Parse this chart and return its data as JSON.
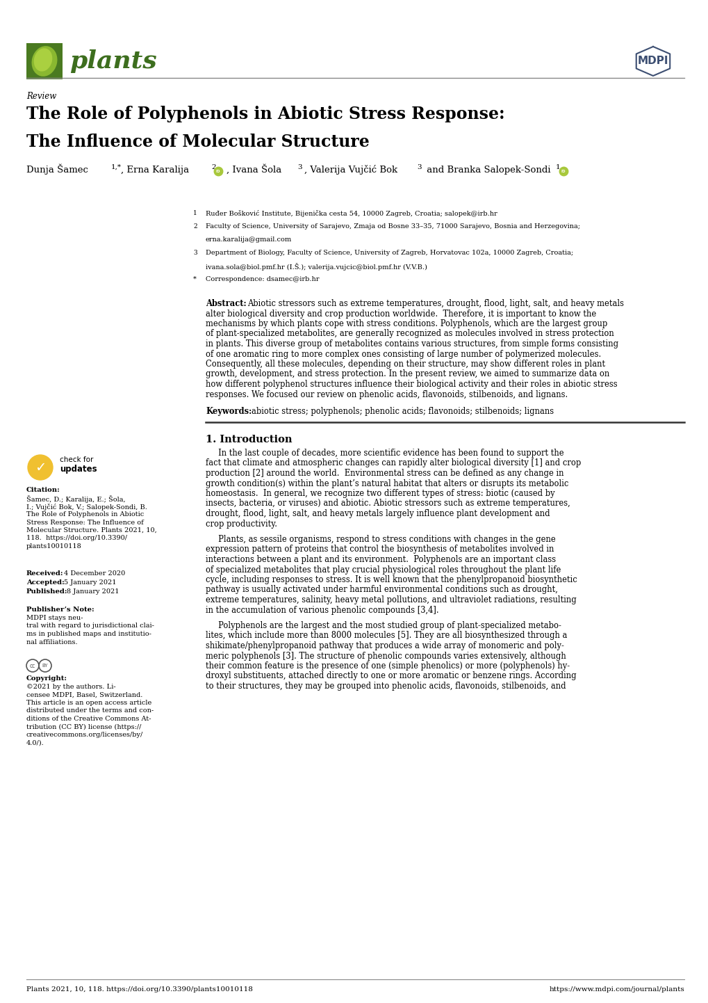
{
  "page_width": 10.2,
  "page_height": 14.42,
  "bg_color": "#ffffff",
  "journal_name": "plants",
  "journal_color": "#3d6e1e",
  "review_label": "Review",
  "title_line1": "The Role of Polyphenols in Abiotic Stress Response:",
  "title_line2": "The Inﬂuence of Molecular Structure",
  "affil1_num": "1",
  "affil1_text": "Ruđer Bošković Institute, Bijenička cesta 54, 10000 Zagreb, Croatia; salopek@irb.hr",
  "affil2_num": "2",
  "affil2_text": "Faculty of Science, University of Sarajevo, Zmaja od Bosne 33–35, 71000 Sarajevo, Bosnia and Herzegovina;",
  "affil2_text2": "erna.karalija@gmail.com",
  "affil3_num": "3",
  "affil3_text": "Department of Biology, Faculty of Science, University of Zagreb, Horvatovac 102a, 10000 Zagreb, Croatia;",
  "affil3_text2": "ivana.sola@biol.pmf.hr (I.Š.); valerija.vujcic@biol.pmf.hr (V.V.B.)",
  "affil_star_text": "Correspondence: dsamec@irb.hr",
  "abstract_body": "Abiotic stressors such as extreme temperatures, drought, flood, light, salt, and heavy metals alter biological diversity and crop production worldwide.  Therefore, it is important to know the mechanisms by which plants cope with stress conditions. Polyphenols, which are the largest group of plant-specialized metabolites, are generally recognized as molecules involved in stress protection in plants. This diverse group of metabolites contains various structures, from simple forms consisting of one aromatic ring to more complex ones consisting of large number of polymerized molecules. Consequently, all these molecules, depending on their structure, may show different roles in plant growth, development, and stress protection. In the present review, we aimed to summarize data on how different polyphenol structures influence their biological activity and their roles in abiotic stress responses. We focused our review on phenolic acids, flavonoids, stilbenoids, and lignans.",
  "keywords_text": "abiotic stress; polyphenols; phenolic acids; flavonoids; stilbenoids; lignans",
  "citation_body": "Šamec, D.; Karalija, E.; Šola,\nI.; Vujčić Bok, V.; Salopek-Sondi, B.\nThe Role of Polyphenols in Abiotic\nStress Response: The Influence of\nMolecular Structure. Plants 2021, 10,\n118.  https://doi.org/10.3390/\nplants10010118",
  "received_date": "4 December 2020",
  "accepted_date": "5 January 2021",
  "published_date": "8 January 2021",
  "publisher_note_body": "MDPI stays neu-\ntral with regard to jurisdictional clai-\nms in published maps and institutio-\nnal affiliations.",
  "copyright_body": "©2021 by the authors. Li-\ncensee MDPI, Basel, Switzerland.\nThis article is an open access article\ndistributed under the terms and con-\nditions of the Creative Commons At-\ntribution (CC BY) license (https://\ncreativecommons.org/licenses/by/\n4.0/).",
  "intro_heading": "1. Introduction",
  "intro_p1": "     In the last couple of decades, more scientific evidence has been found to support the fact that climate and atmospheric changes can rapidly alter biological diversity [1] and crop production [2] around the world.  Environmental stress can be defined as any change in growth condition(s) within the plant’s natural habitat that alters or disrupts its metabolic homeostasis.  In general, we recognize two different types of stress: biotic (caused by insects, bacteria, or viruses) and abiotic. Abiotic stressors such as extreme temperatures, drought, flood, light, salt, and heavy metals largely influence plant development and crop productivity.",
  "intro_p2": "     Plants, as sessile organisms, respond to stress conditions with changes in the gene expression pattern of proteins that control the biosynthesis of metabolites involved in interactions between a plant and its environment.  Polyphenols are an important class of specialized metabolites that play crucial physiological roles throughout the plant life cycle, including responses to stress. It is well known that the phenylpropanoid biosynthetic pathway is usually activated under harmful environmental conditions such as drought, extreme temperatures, salinity, heavy metal pollutions, and ultraviolet radiations, resulting in the accumulation of various phenolic compounds [3,4].",
  "intro_p3": "     Polyphenols are the largest and the most studied group of plant-specialized metabo-lites, which include more than 8000 molecules [5]. They are all biosynthesized through a shikimate/phenylpropanoid pathway that produces a wide array of monomeric and poly-meric polyphenols [3]. The structure of phenolic compounds varies extensively, although their common feature is the presence of one (simple phenolics) or more (polyphenols) hy-droxyl substituents, attached directly to one or more aromatic or benzene rings. According to their structures, they may be grouped into phenolic acids, flavonoids, stilbenoids, and",
  "footer_left": "Plants 2021, 10, 118. https://doi.org/10.3390/plants10010118",
  "footer_right": "https://www.mdpi.com/journal/plants",
  "leaf_green_dark": "#3d6e1e",
  "leaf_green_light": "#6a9e2e",
  "mdpi_color": "#3d4f72",
  "gold_color": "#f0c030",
  "text_small": 7.0,
  "text_body": 8.3,
  "text_author": 9.5,
  "text_title": 17.0,
  "text_section": 10.5
}
